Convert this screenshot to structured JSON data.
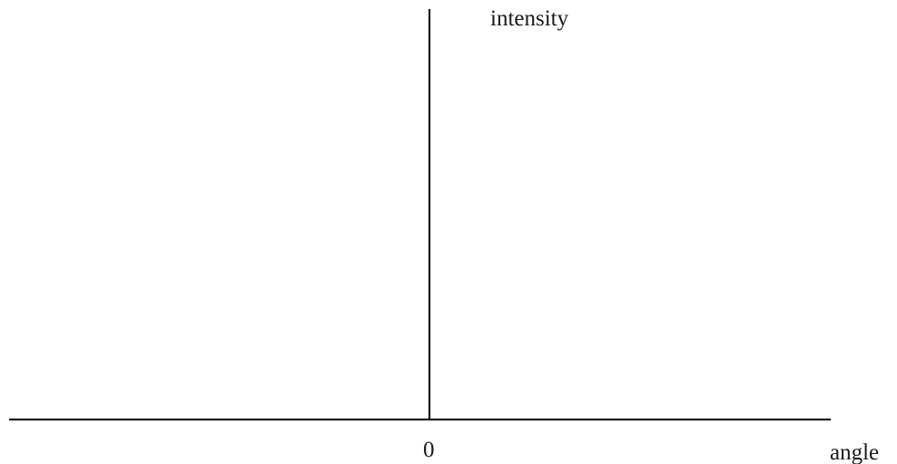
{
  "axes": {
    "y_label": "intensity",
    "x_label": "angle",
    "origin_label": "0"
  },
  "colors": {
    "line": "#1a1a1a",
    "background": "#ffffff"
  }
}
